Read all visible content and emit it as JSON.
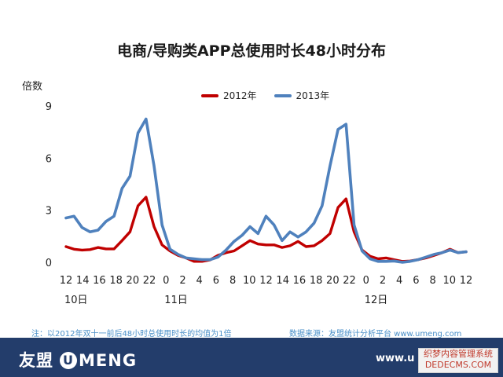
{
  "chart_data": {
    "type": "line",
    "title": "电商/导购类APP总使用时长48小时分布",
    "ylabel": "倍数",
    "xlabel": "",
    "ylim": [
      0,
      9
    ],
    "yticks": [
      0,
      3,
      6,
      9
    ],
    "grid": false,
    "legend_position": "top-center",
    "x_tick_labels": [
      "12",
      "14",
      "16",
      "18",
      "20",
      "22",
      "0",
      "2",
      "4",
      "6",
      "8",
      "10",
      "12",
      "14",
      "16",
      "18",
      "20",
      "22",
      "0",
      "2",
      "4",
      "6",
      "8",
      "10",
      "12"
    ],
    "day_labels": [
      {
        "label": "10日",
        "at_tick": 0
      },
      {
        "label": "11日",
        "at_tick": 6
      },
      {
        "label": "12日",
        "at_tick": 18
      }
    ],
    "series": [
      {
        "name": "2012年",
        "color": "#c00000",
        "values": [
          0.95,
          0.8,
          0.75,
          0.78,
          0.9,
          0.82,
          0.82,
          1.3,
          1.8,
          3.3,
          3.8,
          2.1,
          1.05,
          0.7,
          0.45,
          0.3,
          0.1,
          0.1,
          0.18,
          0.45,
          0.6,
          0.7,
          1.0,
          1.3,
          1.1,
          1.05,
          1.05,
          0.9,
          1.0,
          1.25,
          0.95,
          1.0,
          1.3,
          1.7,
          3.2,
          3.7,
          1.8,
          0.75,
          0.4,
          0.25,
          0.3,
          0.2,
          0.1,
          0.12,
          0.2,
          0.3,
          0.45,
          0.6,
          0.8,
          0.6,
          0.65
        ]
      },
      {
        "name": "2013年",
        "color": "#4f81bd",
        "values": [
          2.6,
          2.7,
          2.05,
          1.8,
          1.9,
          2.4,
          2.7,
          4.3,
          5.0,
          7.5,
          8.3,
          5.6,
          2.2,
          0.8,
          0.5,
          0.3,
          0.25,
          0.2,
          0.2,
          0.35,
          0.75,
          1.25,
          1.6,
          2.1,
          1.7,
          2.7,
          2.2,
          1.3,
          1.8,
          1.5,
          1.8,
          2.3,
          3.3,
          5.6,
          7.7,
          8.0,
          2.2,
          0.7,
          0.25,
          0.1,
          0.1,
          0.12,
          0.05,
          0.1,
          0.2,
          0.35,
          0.5,
          0.6,
          0.75,
          0.6,
          0.65
        ]
      }
    ]
  },
  "footnote": "注：以2012年双十一前后48小时总使用时长的均值为1倍",
  "source_note": "数据来源：友盟统计分析平台 www.umeng.com",
  "footer": {
    "logo_cn": "友盟",
    "logo_u": "U",
    "logo_en": "MENG",
    "site_text": "www.u",
    "watermark": "织梦内容管理系统 DEDECMS.COM"
  }
}
